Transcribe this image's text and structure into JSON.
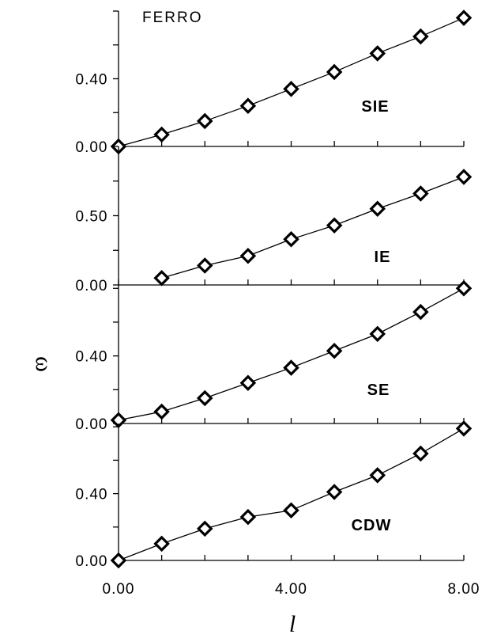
{
  "figure": {
    "title": "FERRO",
    "ylabel": "ω",
    "xlabel": "l"
  },
  "chart_data": [
    {
      "type": "line",
      "label": "SIE",
      "x": [
        0,
        1,
        2,
        3,
        4,
        5,
        6,
        7,
        8
      ],
      "values": [
        0.0,
        0.07,
        0.15,
        0.24,
        0.34,
        0.44,
        0.55,
        0.65,
        0.76
      ],
      "ylim": [
        0,
        0.8
      ],
      "yticks": [
        0.0,
        0.4
      ],
      "ytick_labels": [
        "0.00",
        "0.40"
      ],
      "xlim": [
        0,
        8
      ]
    },
    {
      "type": "line",
      "label": "IE",
      "x": [
        1,
        2,
        3,
        4,
        5,
        6,
        7,
        8
      ],
      "values": [
        0.05,
        0.14,
        0.21,
        0.33,
        0.43,
        0.55,
        0.66,
        0.78
      ],
      "ylim": [
        0,
        1.0
      ],
      "yticks": [
        0.0,
        0.5
      ],
      "ytick_labels": [
        "0.00",
        "0.50"
      ],
      "xlim": [
        0,
        8
      ]
    },
    {
      "type": "line",
      "label": "SE",
      "x": [
        0,
        1,
        2,
        3,
        4,
        5,
        6,
        7,
        8
      ],
      "values": [
        0.02,
        0.07,
        0.15,
        0.24,
        0.33,
        0.43,
        0.53,
        0.66,
        0.8
      ],
      "ylim": [
        0,
        0.82
      ],
      "yticks": [
        0.0,
        0.4
      ],
      "ytick_labels": [
        "0.00",
        "0.40"
      ],
      "xlim": [
        0,
        8
      ]
    },
    {
      "type": "line",
      "label": "CDW",
      "x": [
        0,
        1,
        2,
        3,
        4,
        5,
        6,
        7,
        8
      ],
      "values": [
        0.0,
        0.1,
        0.19,
        0.26,
        0.3,
        0.41,
        0.51,
        0.64,
        0.79
      ],
      "ylim": [
        0,
        0.82
      ],
      "yticks": [
        0.0,
        0.4
      ],
      "ytick_labels": [
        "0.00",
        "0.40"
      ],
      "xlim": [
        0,
        8
      ],
      "xticks": [
        0,
        4,
        8
      ],
      "xtick_labels": [
        "0.00",
        "4.00",
        "8.00"
      ]
    }
  ]
}
